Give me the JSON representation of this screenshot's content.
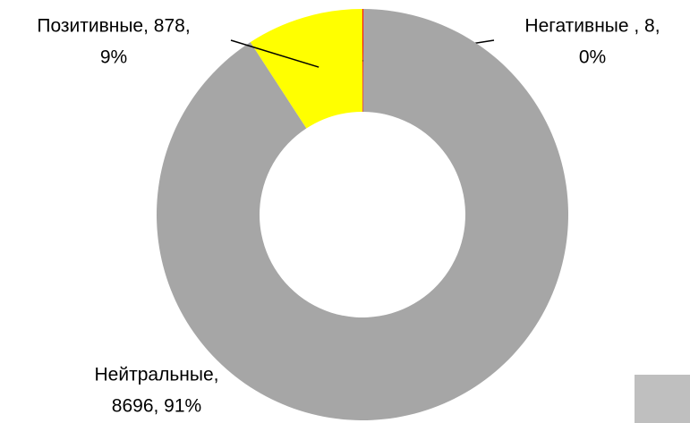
{
  "chart_data": {
    "type": "donut",
    "values": [
      8,
      8696,
      878
    ],
    "colors": [
      "#ff0000",
      "#a6a6a6",
      "#ffff00"
    ],
    "value_labels": [
      [
        "Негативные , 8,",
        "0%"
      ],
      [
        "Нейтральные,",
        "8696, 91%"
      ],
      [
        "Позитивные, 878,",
        "9%"
      ]
    ]
  }
}
